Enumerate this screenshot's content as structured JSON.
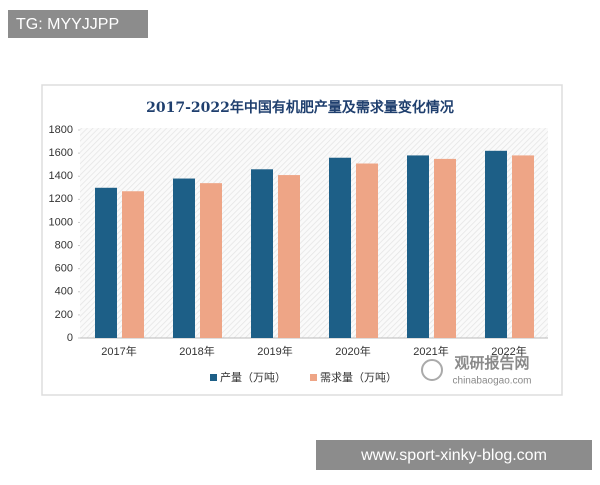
{
  "overlay_top": "TG: MYYJJPP",
  "overlay_bottom": "www.sport-xinky-blog.com",
  "watermark": {
    "name": "观研报告网",
    "url": "chinabaogao.com"
  },
  "chart_data": {
    "type": "bar",
    "title": "2017-2022年中国有机肥产量及需求量变化情况",
    "categories": [
      "2017年",
      "2018年",
      "2019年",
      "2020年",
      "2021年",
      "2022年"
    ],
    "series": [
      {
        "name": "产量（万吨）",
        "color": "#1d5f87",
        "values": [
          1300,
          1380,
          1460,
          1560,
          1580,
          1620
        ]
      },
      {
        "name": "需求量（万吨）",
        "color": "#eea586",
        "values": [
          1270,
          1340,
          1410,
          1510,
          1550,
          1580
        ]
      }
    ],
    "ylim": [
      0,
      1800
    ],
    "yticks": [
      0,
      200,
      400,
      600,
      800,
      1000,
      1200,
      1400,
      1600,
      1800
    ],
    "legend": "bottom"
  }
}
